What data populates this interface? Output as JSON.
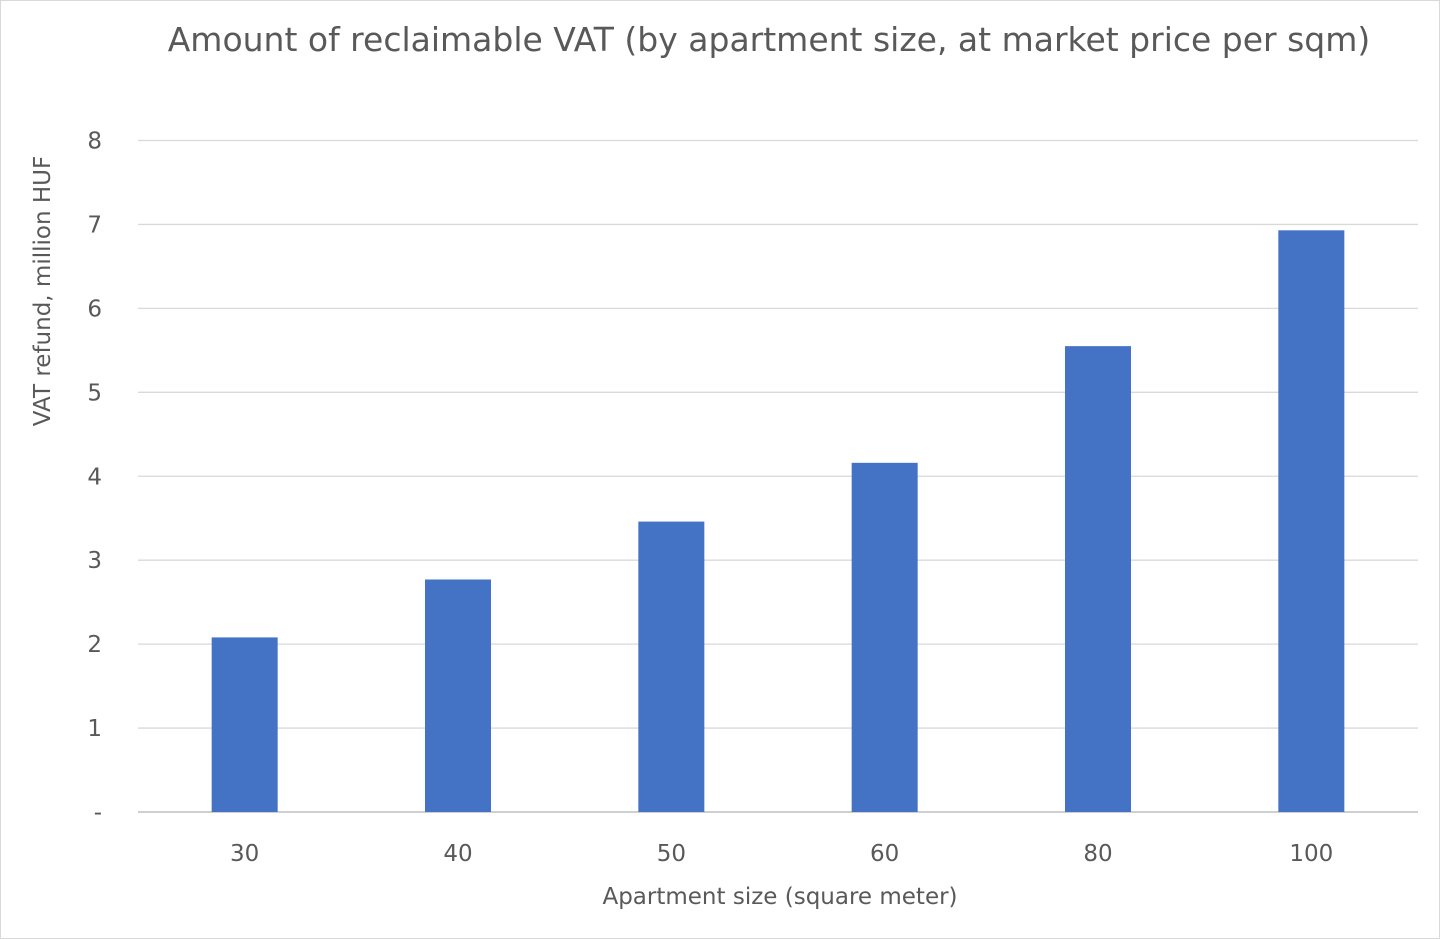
{
  "chart_data": {
    "type": "bar",
    "title": "Amount of reclaimable VAT (by apartment size, at market price per sqm)",
    "xlabel": "Apartment size (square meter)",
    "ylabel": "VAT refund, million HUF",
    "categories": [
      "30",
      "40",
      "50",
      "60",
      "80",
      "100"
    ],
    "series": [
      {
        "name": "VAT refund",
        "values": [
          2.08,
          2.77,
          3.46,
          4.16,
          5.55,
          6.93
        ]
      }
    ],
    "ylim": [
      0,
      8
    ],
    "yticks": [
      0,
      1,
      2,
      3,
      4,
      5,
      6,
      7,
      8
    ],
    "ytick_labels": [
      "-",
      "1",
      "2",
      "3",
      "4",
      "5",
      "6",
      "7",
      "8"
    ],
    "grid": true,
    "legend": "none",
    "colors": {
      "bar": "#4472C4",
      "grid": "#D9D9D9",
      "text": "#595959"
    }
  }
}
